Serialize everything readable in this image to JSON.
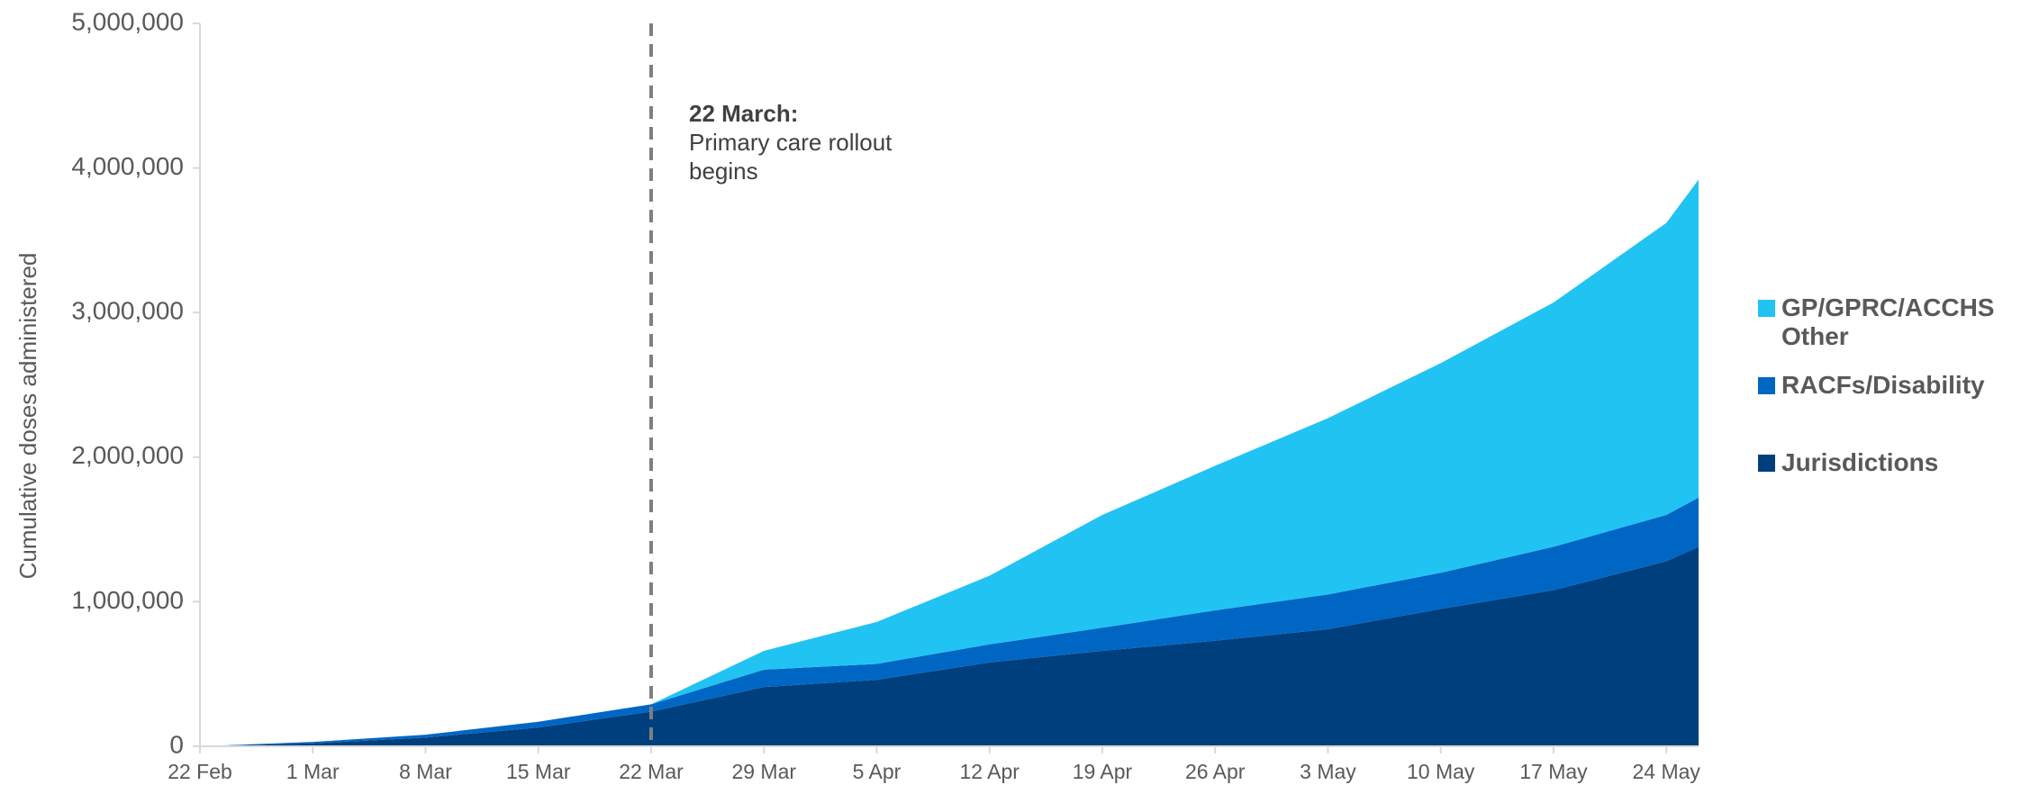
{
  "chart_data": {
    "type": "stacked-area",
    "ylabel": "Cumulative doses administered",
    "x": [
      0,
      7,
      14,
      21,
      28,
      35,
      42,
      49,
      56,
      63,
      70,
      77,
      84,
      91,
      93
    ],
    "series": [
      {
        "name": "Jurisdictions",
        "color": "#003f7d",
        "values": [
          0,
          20000,
          60000,
          130000,
          240000,
          410000,
          460000,
          580000,
          660000,
          730000,
          810000,
          950000,
          1080000,
          1280000,
          1380000
        ]
      },
      {
        "name": "RACFs/Disability",
        "color": "#0066c4",
        "values": [
          0,
          10000,
          20000,
          40000,
          50000,
          120000,
          110000,
          125000,
          160000,
          210000,
          240000,
          250000,
          300000,
          320000,
          340000
        ]
      },
      {
        "name": "GP/GPRC/ACCHS Other",
        "color": "#21c3f3",
        "values": [
          0,
          0,
          0,
          0,
          0,
          130000,
          290000,
          475000,
          780000,
          1000000,
          1220000,
          1450000,
          1690000,
          2020000,
          2200000
        ]
      }
    ],
    "xlim": [
      0,
      93
    ],
    "xticks": [
      {
        "value": 0,
        "label": "22 Feb"
      },
      {
        "value": 7,
        "label": "1 Mar"
      },
      {
        "value": 14,
        "label": "8 Mar"
      },
      {
        "value": 21,
        "label": "15 Mar"
      },
      {
        "value": 28,
        "label": "22 Mar"
      },
      {
        "value": 35,
        "label": "29 Mar"
      },
      {
        "value": 42,
        "label": "5 Apr"
      },
      {
        "value": 49,
        "label": "12 Apr"
      },
      {
        "value": 56,
        "label": "19 Apr"
      },
      {
        "value": 63,
        "label": "26 Apr"
      },
      {
        "value": 70,
        "label": "3 May"
      },
      {
        "value": 77,
        "label": "10 May"
      },
      {
        "value": 84,
        "label": "17 May"
      },
      {
        "value": 91,
        "label": "24 May"
      }
    ],
    "ylim": [
      0,
      5000000
    ],
    "yticks": [
      0,
      {
        "value": 1000000,
        "label": "1,000,000"
      },
      {
        "value": 2000000,
        "label": "2,000,000"
      },
      {
        "value": 3000000,
        "label": "3,000,000"
      },
      {
        "value": 4000000,
        "label": "4,000,000"
      },
      {
        "value": 5000000,
        "label": "5,000,000"
      }
    ],
    "annotation": {
      "x": 28,
      "label": "22 March:",
      "text": "Primary care rollout begins"
    },
    "legend": "right"
  }
}
